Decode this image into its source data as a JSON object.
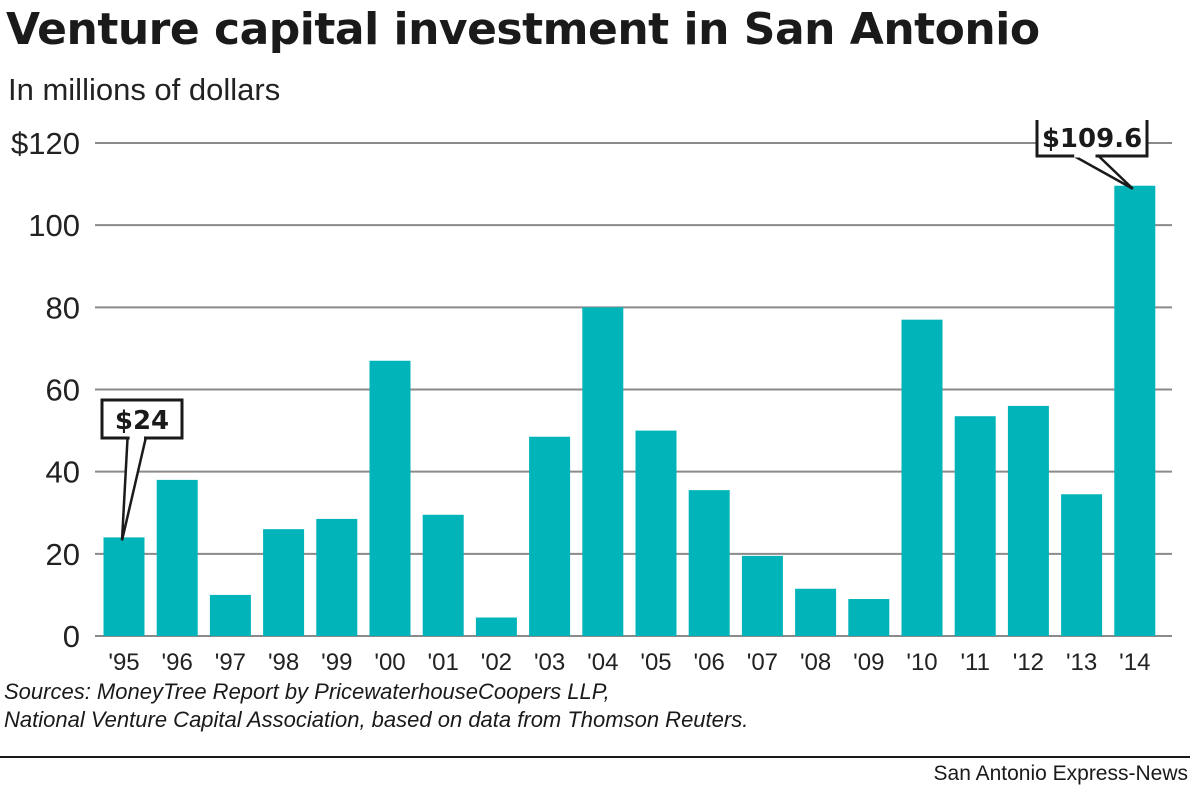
{
  "chart_data": {
    "type": "bar",
    "title": "Venture capital investment in San Antonio",
    "subtitle": "In millions of dollars",
    "categories": [
      "'95",
      "'96",
      "'97",
      "'98",
      "'99",
      "'00",
      "'01",
      "'02",
      "'03",
      "'04",
      "'05",
      "'06",
      "'07",
      "'08",
      "'09",
      "'10",
      "'11",
      "'12",
      "'13",
      "'14"
    ],
    "values": [
      24,
      38,
      10,
      26,
      28.5,
      67,
      29.5,
      4.5,
      48.5,
      80,
      50,
      35.5,
      19.5,
      11.5,
      9,
      77,
      53.5,
      56,
      34.5,
      109.6
    ],
    "ylim": [
      0,
      120
    ],
    "yticks": [
      0,
      20,
      40,
      60,
      80,
      100,
      120
    ],
    "ytick_labels": [
      "0",
      "20",
      "40",
      "60",
      "80",
      "100",
      "$120"
    ],
    "annotations": [
      {
        "category": "'95",
        "text": "$24"
      },
      {
        "category": "'14",
        "text": "$109.6"
      }
    ],
    "grid": true,
    "bar_color": "#00b4b9"
  },
  "sources": [
    "Sources: MoneyTree Report by PricewaterhouseCoopers LLP,",
    "National Venture Capital Association, based on data from Thomson Reuters."
  ],
  "credit": "San Antonio Express-News"
}
